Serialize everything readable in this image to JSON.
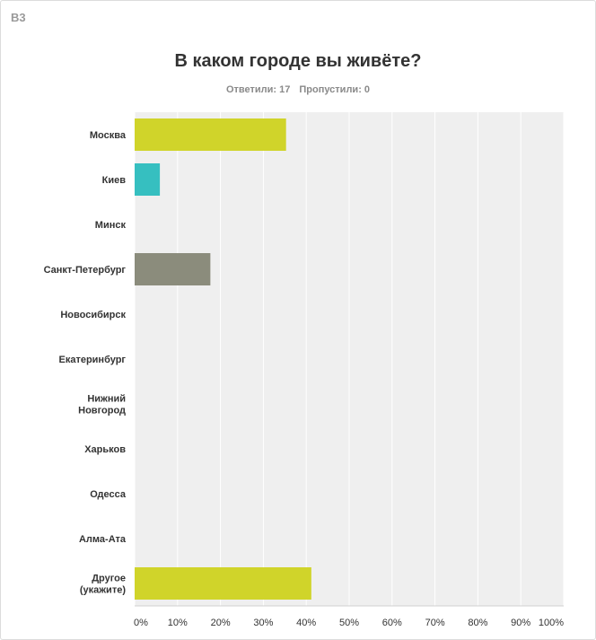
{
  "question": {
    "number": "В3",
    "title": "В каком городе вы живёте?",
    "answered": "Ответили: 17",
    "skipped": "Пропустили: 0"
  },
  "colors": {
    "plot_background": "#efefef",
    "gridline": "#ffffff",
    "accent_lime": "#d0d42a",
    "accent_teal": "#36bfc0",
    "accent_gray": "#8b8c7c"
  },
  "chart_data": {
    "type": "bar",
    "orientation": "horizontal",
    "categories": [
      "Москва",
      "Киев",
      "Минск",
      "Санкт-Петербург",
      "Новосибирск",
      "Екатеринбург",
      "Нижний Новгород",
      "Харьков",
      "Одесса",
      "Алма-Ата",
      "Другое (укажите)"
    ],
    "category_lines": [
      [
        "Москва"
      ],
      [
        "Киев"
      ],
      [
        "Минск"
      ],
      [
        "Санкт-Петербург"
      ],
      [
        "Новосибирск"
      ],
      [
        "Екатеринбург"
      ],
      [
        "Нижний",
        "Новгород"
      ],
      [
        "Харьков"
      ],
      [
        "Одесса"
      ],
      [
        "Алма-Ата"
      ],
      [
        "Другое",
        "(укажите)"
      ]
    ],
    "values": [
      35.29,
      5.88,
      0,
      17.65,
      0,
      0,
      0,
      0,
      0,
      0,
      41.18
    ],
    "bar_colors": [
      "#d0d42a",
      "#36bfc0",
      "#d0d42a",
      "#8b8c7c",
      "#d0d42a",
      "#d0d42a",
      "#d0d42a",
      "#d0d42a",
      "#d0d42a",
      "#d0d42a",
      "#d0d42a"
    ],
    "xlim": [
      0,
      100
    ],
    "xticks": [
      0,
      10,
      20,
      30,
      40,
      50,
      60,
      70,
      80,
      90,
      100
    ],
    "xtick_labels": [
      "0%",
      "10%",
      "20%",
      "30%",
      "40%",
      "50%",
      "60%",
      "70%",
      "80%",
      "90%",
      "100%"
    ],
    "grid": true,
    "title": "В каком городе вы живёте?",
    "xlabel": "",
    "ylabel": ""
  }
}
